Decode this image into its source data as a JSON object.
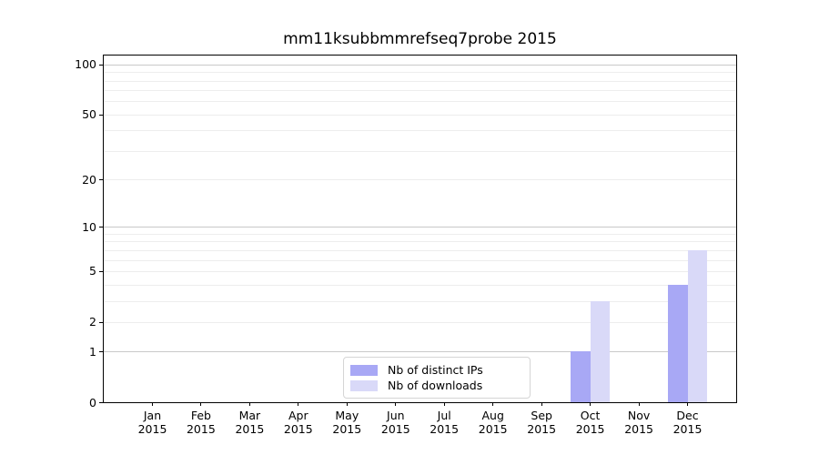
{
  "title": "mm11ksubbmmrefseq7probe 2015",
  "chart_data": {
    "type": "bar",
    "title": "mm11ksubbmmrefseq7probe 2015",
    "xlabel": "",
    "ylabel": "",
    "year_label": "2015",
    "categories": [
      "Jan",
      "Feb",
      "Mar",
      "Apr",
      "May",
      "Jun",
      "Jul",
      "Aug",
      "Sep",
      "Oct",
      "Nov",
      "Dec"
    ],
    "series": [
      {
        "name": "Nb of distinct IPs",
        "color": "#a8a8f5",
        "values": [
          0,
          0,
          0,
          0,
          0,
          0,
          0,
          0,
          0,
          1,
          0,
          4
        ]
      },
      {
        "name": "Nb of downloads",
        "color": "#d9d9f8",
        "values": [
          0,
          0,
          0,
          0,
          0,
          0,
          0,
          0,
          0,
          3,
          0,
          7
        ]
      }
    ],
    "yscale": "log1p",
    "ylim": [
      0,
      113
    ],
    "xlim": [
      -1,
      12
    ],
    "yticks": [
      0,
      1,
      2,
      5,
      10,
      20,
      50,
      100
    ],
    "major_gridlines": [
      1,
      10,
      100
    ],
    "minor_gridlines": [
      2,
      3,
      4,
      5,
      6,
      7,
      8,
      9,
      20,
      30,
      40,
      50,
      60,
      70,
      80,
      90
    ],
    "bar_width_fraction": 0.4,
    "grid": true,
    "legend_position": "lower center"
  },
  "colors": {
    "distinct_ips": "#a8a8f5",
    "downloads": "#d9d9f8",
    "major_grid": "#c9c9c9",
    "minor_grid": "#ededed",
    "axis": "#000000"
  }
}
